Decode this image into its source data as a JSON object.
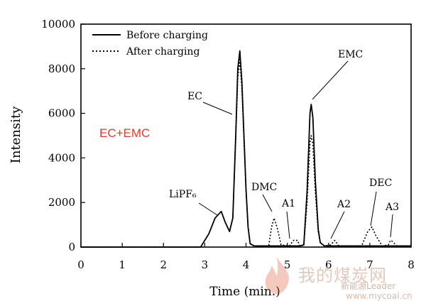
{
  "chart_data": {
    "type": "line",
    "xlabel": "Time (min.)",
    "ylabel": "Intensity",
    "xlim": [
      0,
      8
    ],
    "ylim": [
      0,
      10000
    ],
    "x_ticks": [
      0,
      1,
      2,
      3,
      4,
      5,
      6,
      7,
      8
    ],
    "y_ticks": [
      0,
      2000,
      4000,
      6000,
      8000,
      10000
    ],
    "grid": false,
    "legend_position": "top-left",
    "annotation_text": "EC+EMC",
    "annotation_color": "#e83a2a",
    "series": [
      {
        "name": "Before charging",
        "style": "solid",
        "color": "#000000",
        "x": [
          0,
          2.9,
          3.1,
          3.25,
          3.4,
          3.5,
          3.6,
          3.68,
          3.75,
          3.8,
          3.85,
          3.9,
          3.95,
          4.0,
          4.05,
          4.1,
          4.2,
          4.5,
          4.8,
          5.0,
          5.3,
          5.4,
          5.48,
          5.55,
          5.58,
          5.62,
          5.68,
          5.75,
          5.8,
          5.9,
          6.2,
          6.8,
          7.3,
          8.0
        ],
        "y": [
          0,
          0,
          600,
          1300,
          1600,
          1100,
          700,
          1300,
          5000,
          8000,
          8800,
          7400,
          5000,
          2600,
          900,
          150,
          50,
          50,
          50,
          50,
          50,
          100,
          2500,
          6000,
          6400,
          5800,
          3000,
          800,
          200,
          50,
          50,
          50,
          50,
          50
        ]
      },
      {
        "name": "After charging",
        "style": "dotted",
        "color": "#000000",
        "x": [
          0,
          2.9,
          3.1,
          3.25,
          3.4,
          3.5,
          3.6,
          3.68,
          3.75,
          3.8,
          3.85,
          3.9,
          3.95,
          4.0,
          4.05,
          4.1,
          4.2,
          4.55,
          4.62,
          4.68,
          4.75,
          4.85,
          5.05,
          5.15,
          5.25,
          5.3,
          5.4,
          5.48,
          5.55,
          5.58,
          5.62,
          5.68,
          5.75,
          5.8,
          5.9,
          6.05,
          6.15,
          6.25,
          6.8,
          6.95,
          7.05,
          7.15,
          7.3,
          7.45,
          7.5,
          7.55,
          7.65,
          8.0
        ],
        "y": [
          0,
          0,
          600,
          1300,
          1600,
          1100,
          700,
          1300,
          4800,
          7600,
          8400,
          7100,
          4800,
          2500,
          900,
          150,
          50,
          50,
          900,
          1300,
          900,
          100,
          50,
          300,
          300,
          50,
          80,
          2000,
          4700,
          5000,
          4600,
          2500,
          700,
          200,
          50,
          100,
          300,
          50,
          50,
          700,
          900,
          500,
          50,
          100,
          300,
          250,
          50,
          50
        ]
      }
    ],
    "peak_labels": [
      {
        "text": "LiPF₆",
        "x": 3.35,
        "y": 1600
      },
      {
        "text": "EC",
        "x": 3.72,
        "y": 6000
      },
      {
        "text": "DMC",
        "x": 4.65,
        "y": 1200
      },
      {
        "text": "A1",
        "x": 5.1,
        "y": 300
      },
      {
        "text": "EMC",
        "x": 5.58,
        "y": 6400
      },
      {
        "text": "A2",
        "x": 6.08,
        "y": 200
      },
      {
        "text": "DEC",
        "x": 7.05,
        "y": 800
      },
      {
        "text": "A3",
        "x": 7.52,
        "y": 300
      }
    ]
  },
  "watermark": {
    "main": "我的煤炭网",
    "sub": "新能源Leader",
    "url": "www.mycoal.cn"
  }
}
